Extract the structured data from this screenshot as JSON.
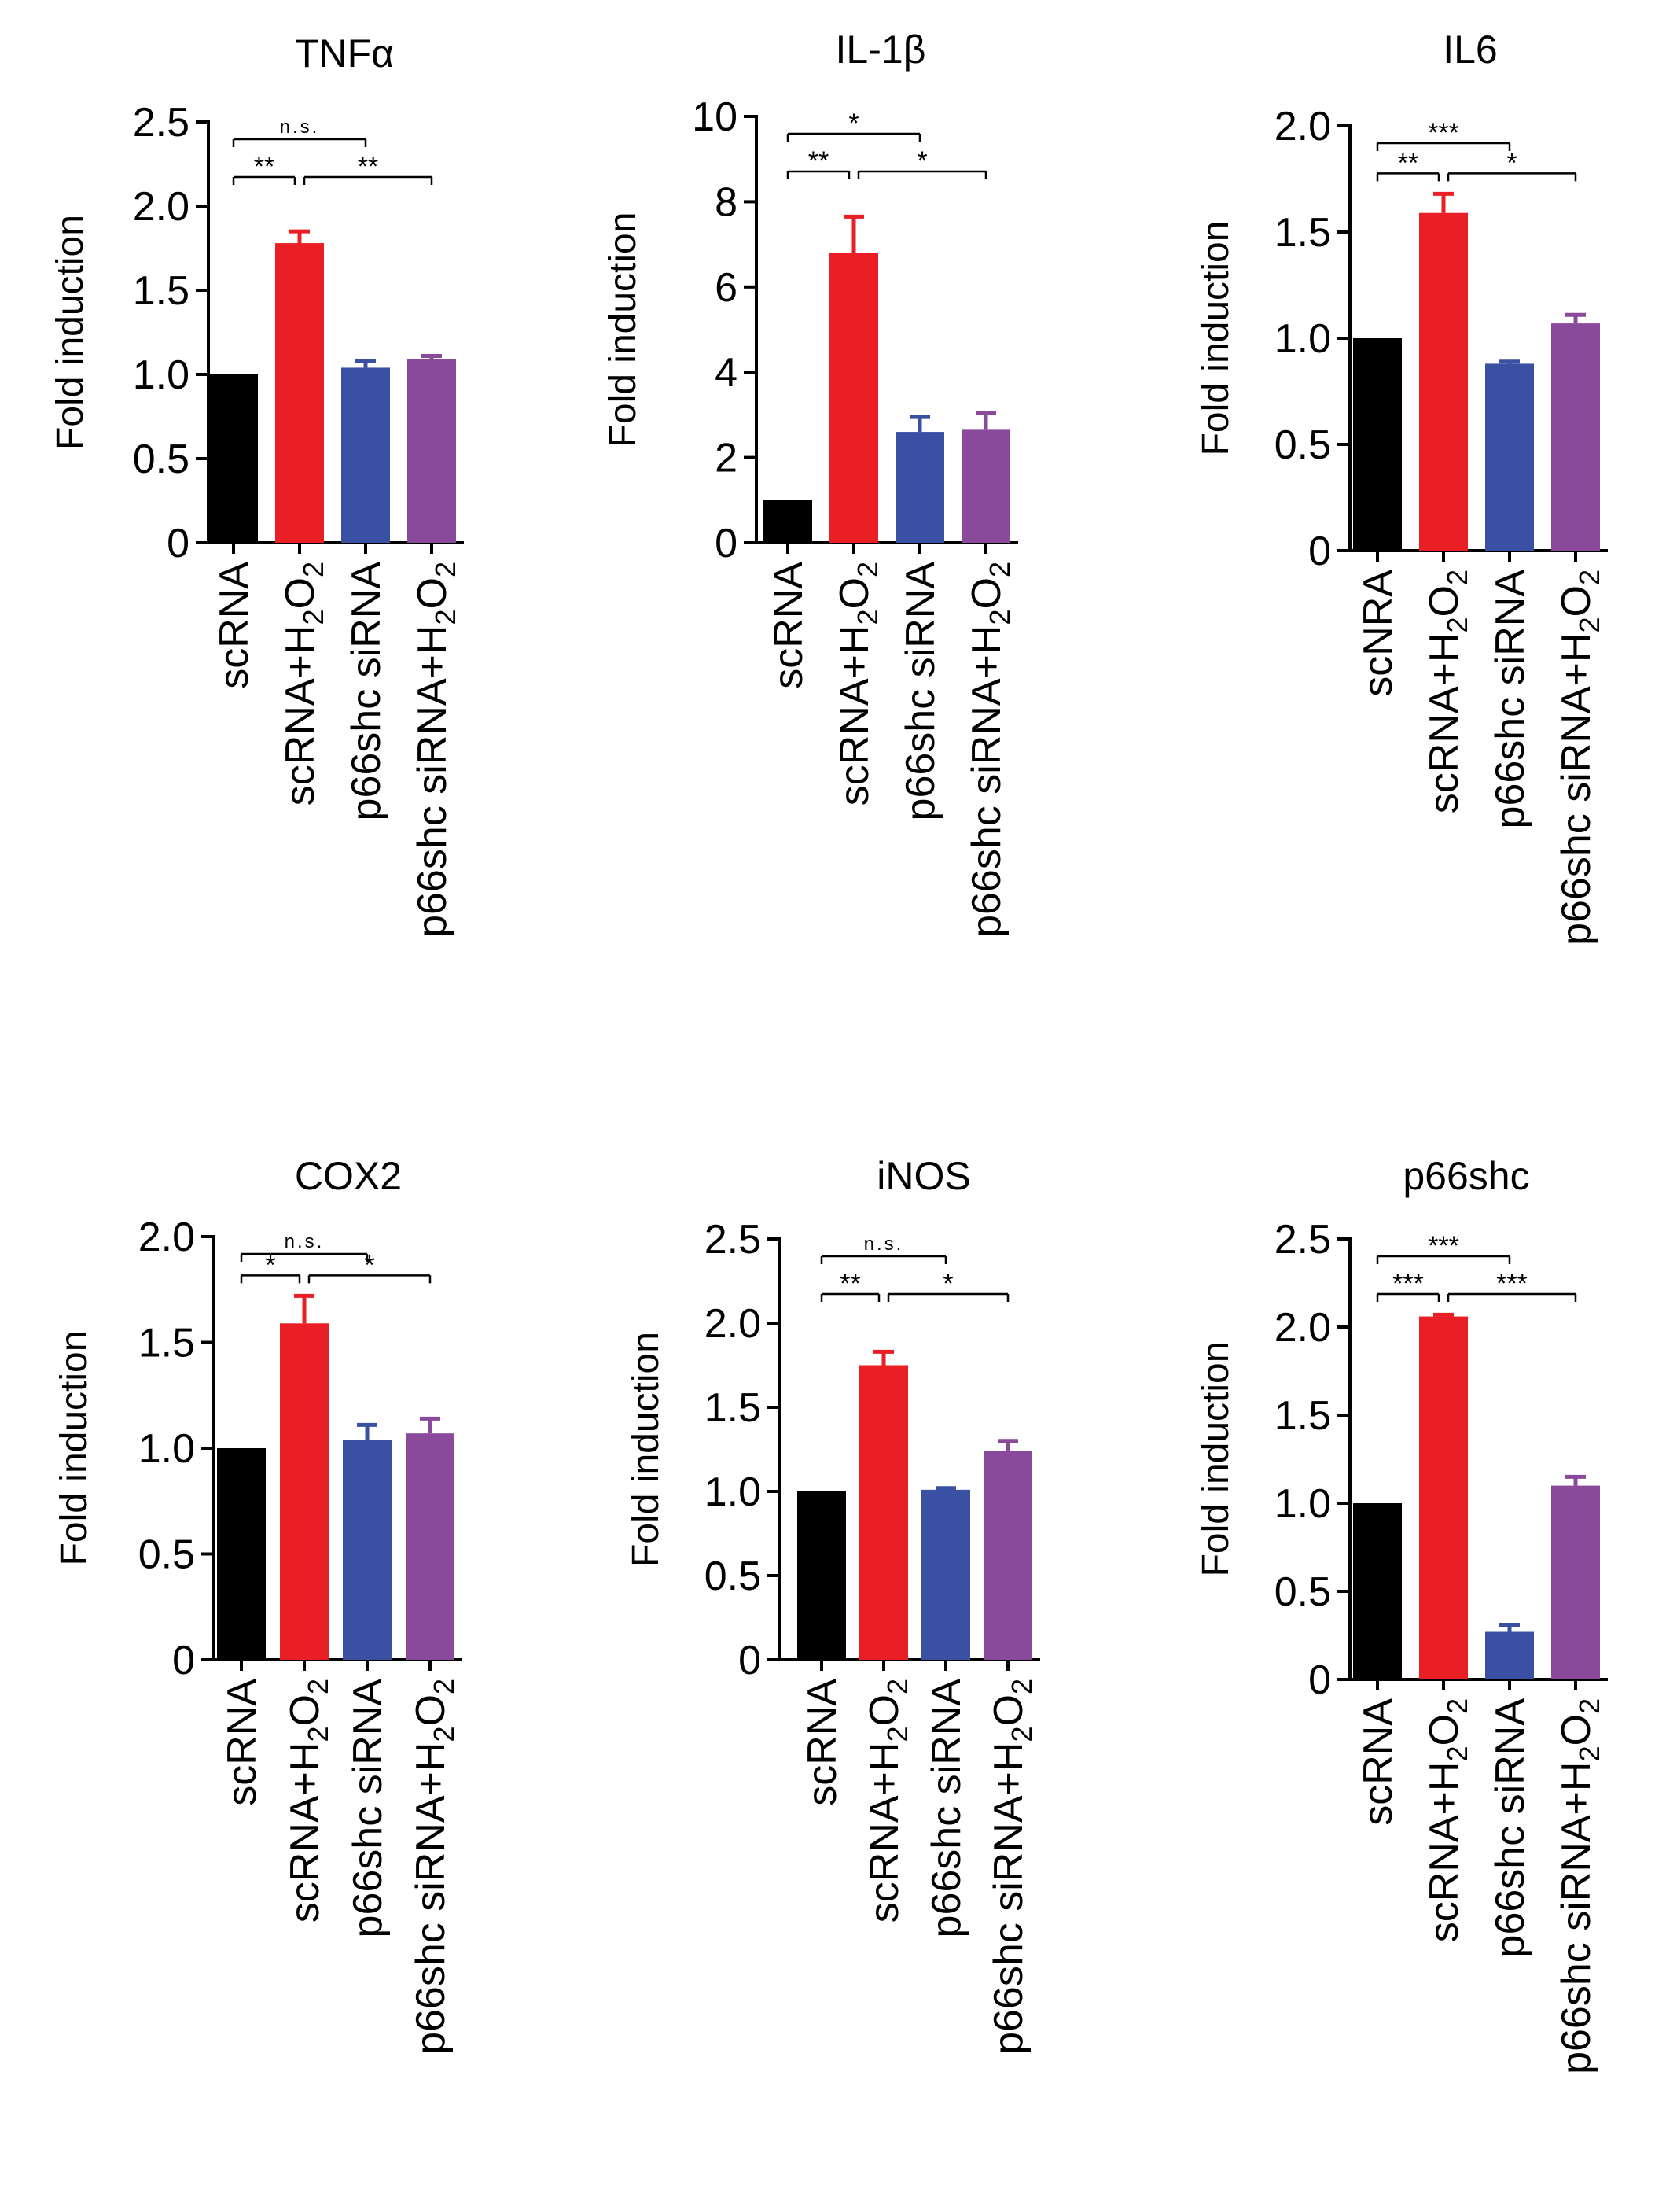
{
  "chart_data": [
    {
      "type": "bar",
      "title": "TNFα",
      "ylabel": "Fold induction",
      "categories": [
        "scRNA",
        "scRNA+H₂O₂",
        "p66shc siRNA",
        "p66shc siRNA+H₂O₂"
      ],
      "values": [
        1.0,
        1.78,
        1.04,
        1.09
      ],
      "errors": [
        0,
        0.07,
        0.04,
        0.02
      ],
      "ylim": [
        0,
        2.5
      ],
      "yticks": [
        0,
        0.5,
        1.0,
        1.5,
        2.0,
        2.5
      ],
      "ytick_labels": [
        "0",
        "0.5",
        "1.0",
        "1.5",
        "2.0",
        "2.5"
      ],
      "significance": [
        {
          "from": 0,
          "to": 2,
          "label": "n.s."
        },
        {
          "from": 0,
          "to": 1,
          "label": "**"
        },
        {
          "from": 1,
          "to": 3,
          "label": "**"
        }
      ]
    },
    {
      "type": "bar",
      "title": "IL-1β",
      "ylabel": "Fold induction",
      "categories": [
        "scRNA",
        "scRNA+H₂O₂",
        "p66shc siRNA",
        "p66shc siRNA+H₂O₂"
      ],
      "values": [
        1.0,
        6.8,
        2.6,
        2.65
      ],
      "errors": [
        0,
        0.85,
        0.35,
        0.4
      ],
      "ylim": [
        0,
        10
      ],
      "yticks": [
        0,
        2,
        4,
        6,
        8,
        10
      ],
      "ytick_labels": [
        "0",
        "2",
        "4",
        "6",
        "8",
        "10"
      ],
      "significance": [
        {
          "from": 0,
          "to": 2,
          "label": "*"
        },
        {
          "from": 0,
          "to": 1,
          "label": "**"
        },
        {
          "from": 1,
          "to": 3,
          "label": "*"
        }
      ]
    },
    {
      "type": "bar",
      "title": "IL6",
      "ylabel": "Fold induction",
      "categories": [
        "scNRA",
        "scRNA+H₂O₂",
        "p66shc siRNA",
        "p66shc siRNA+H₂O₂"
      ],
      "values": [
        1.0,
        1.59,
        0.88,
        1.07
      ],
      "errors": [
        0,
        0.09,
        0.01,
        0.04
      ],
      "ylim": [
        0,
        2.0
      ],
      "yticks": [
        0,
        0.5,
        1.0,
        1.5,
        2.0
      ],
      "ytick_labels": [
        "0",
        "0.5",
        "1.0",
        "1.5",
        "2.0"
      ],
      "significance": [
        {
          "from": 0,
          "to": 2,
          "label": "***"
        },
        {
          "from": 0,
          "to": 1,
          "label": "**"
        },
        {
          "from": 1,
          "to": 3,
          "label": "*"
        }
      ]
    },
    {
      "type": "bar",
      "title": "COX2",
      "ylabel": "Fold induction",
      "categories": [
        "scRNA",
        "scRNA+H₂O₂",
        "p66shc siRNA",
        "p66shc siRNA+H₂O₂"
      ],
      "values": [
        1.0,
        1.59,
        1.04,
        1.07
      ],
      "errors": [
        0,
        0.13,
        0.07,
        0.07
      ],
      "ylim": [
        0,
        2.0
      ],
      "yticks": [
        0,
        0.5,
        1.0,
        1.5,
        2.0
      ],
      "ytick_labels": [
        "0",
        "0.5",
        "1.0",
        "1.5",
        "2.0"
      ],
      "significance": [
        {
          "from": 0,
          "to": 2,
          "label": "n.s."
        },
        {
          "from": 0,
          "to": 1,
          "label": "*"
        },
        {
          "from": 1,
          "to": 3,
          "label": "*"
        }
      ]
    },
    {
      "type": "bar",
      "title": "iNOS",
      "ylabel": "Fold induction",
      "categories": [
        "scRNA",
        "scRNA+H₂O₂",
        "p66shc siRNA",
        "p66shc siRNA+H₂O₂"
      ],
      "values": [
        1.0,
        1.75,
        1.01,
        1.24
      ],
      "errors": [
        0,
        0.08,
        0.01,
        0.06
      ],
      "ylim": [
        0,
        2.5
      ],
      "yticks": [
        0,
        0.5,
        1.0,
        1.5,
        2.0,
        2.5
      ],
      "ytick_labels": [
        "0",
        "0.5",
        "1.0",
        "1.5",
        "2.0",
        "2.5"
      ],
      "significance": [
        {
          "from": 0,
          "to": 2,
          "label": "n.s."
        },
        {
          "from": 0,
          "to": 1,
          "label": "**"
        },
        {
          "from": 1,
          "to": 3,
          "label": "*"
        }
      ]
    },
    {
      "type": "bar",
      "title": "p66shc",
      "ylabel": "Fold induction",
      "categories": [
        "scRNA",
        "scRNA+H₂O₂",
        "p66shc siRNA",
        "p66shc siRNA+H₂O₂"
      ],
      "values": [
        1.0,
        2.06,
        0.27,
        1.1
      ],
      "errors": [
        0,
        0.01,
        0.04,
        0.05
      ],
      "ylim": [
        0,
        2.5
      ],
      "yticks": [
        0,
        0.5,
        1.0,
        1.5,
        2.0,
        2.5
      ],
      "ytick_labels": [
        "0",
        "0.5",
        "1.0",
        "1.5",
        "2.0",
        "2.5"
      ],
      "significance": [
        {
          "from": 0,
          "to": 2,
          "label": "***"
        },
        {
          "from": 0,
          "to": 1,
          "label": "***"
        },
        {
          "from": 1,
          "to": 3,
          "label": "***"
        }
      ]
    }
  ],
  "colors": {
    "bars": [
      "#000000",
      "#ea1f25",
      "#3a51a3",
      "#8a4a9c"
    ],
    "axis": "#000000"
  }
}
